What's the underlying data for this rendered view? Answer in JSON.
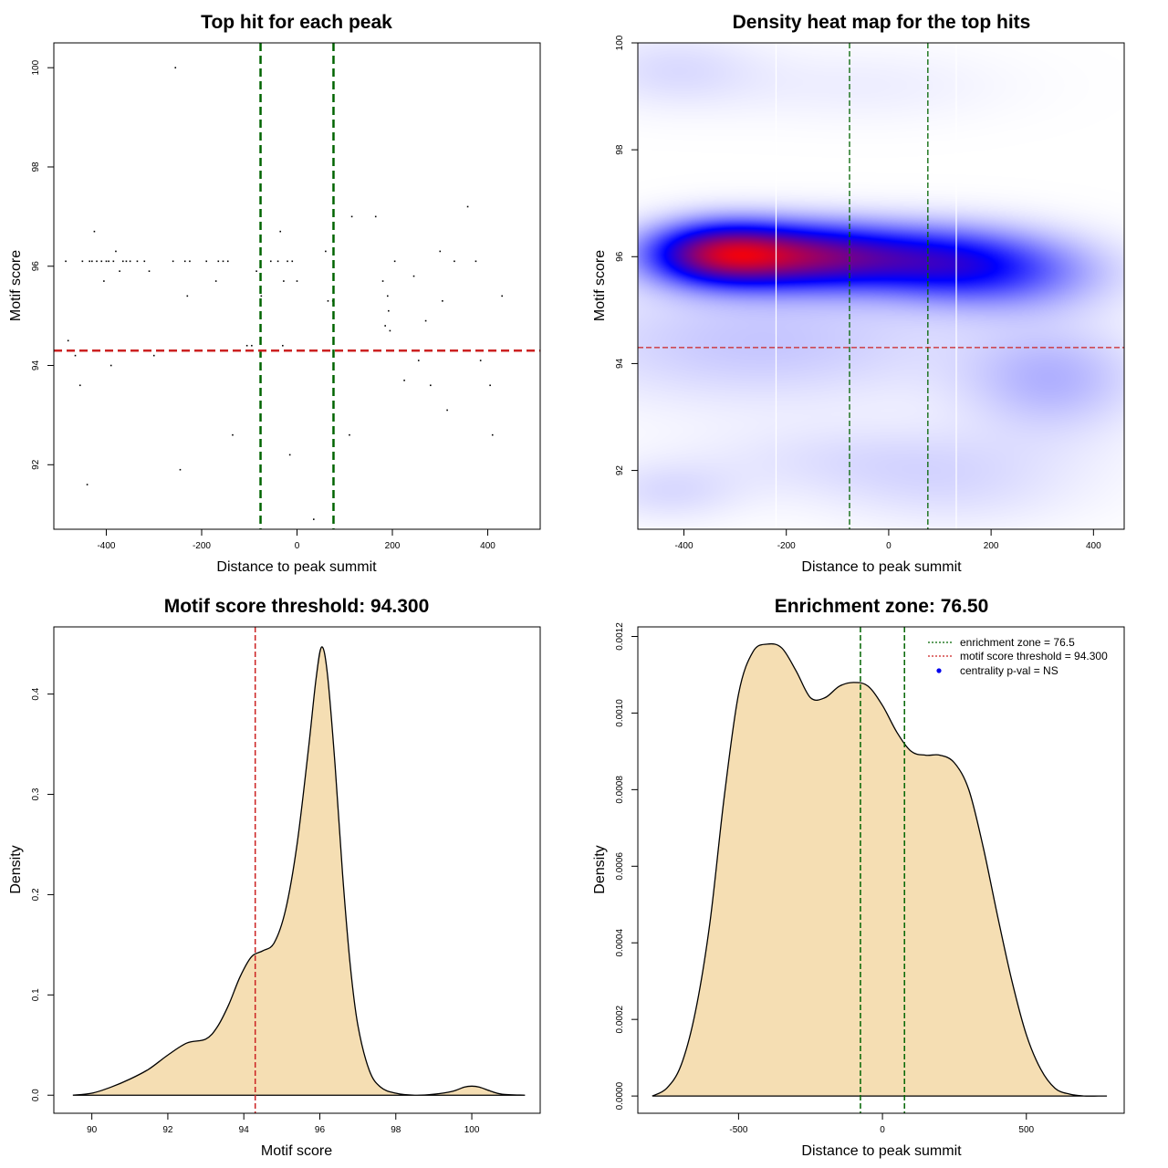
{
  "chart_data": [
    {
      "id": "p1",
      "type": "scatter",
      "title": "Top hit for each peak",
      "xlabel": "Distance to peak summit",
      "ylabel": "Motif score",
      "xlim": [
        -510,
        510
      ],
      "ylim": [
        90.7,
        100.5
      ],
      "xticks": [
        -400,
        -200,
        0,
        200,
        400
      ],
      "yticks": [
        92,
        94,
        96,
        98,
        100
      ],
      "vlines": [
        {
          "x": -76.5,
          "color": "#006400"
        },
        {
          "x": 76.5,
          "color": "#006400"
        }
      ],
      "hlines": [
        {
          "y": 94.3,
          "color": "#cc2222"
        }
      ],
      "points": [
        [
          -485,
          96.1
        ],
        [
          -480,
          94.5
        ],
        [
          -465,
          94.2
        ],
        [
          -455,
          93.6
        ],
        [
          -450,
          96.1
        ],
        [
          -440,
          91.6
        ],
        [
          -435,
          96.1
        ],
        [
          -430,
          96.1
        ],
        [
          -425,
          96.7
        ],
        [
          -420,
          96.1
        ],
        [
          -410,
          96.1
        ],
        [
          -405,
          95.7
        ],
        [
          -400,
          96.1
        ],
        [
          -395,
          96.1
        ],
        [
          -390,
          94.0
        ],
        [
          -385,
          96.1
        ],
        [
          -380,
          96.3
        ],
        [
          -372,
          95.9
        ],
        [
          -365,
          96.1
        ],
        [
          -358,
          96.1
        ],
        [
          -350,
          96.1
        ],
        [
          -335,
          96.1
        ],
        [
          -320,
          96.1
        ],
        [
          -310,
          95.9
        ],
        [
          -300,
          94.2
        ],
        [
          -260,
          96.1
        ],
        [
          -255,
          100.0
        ],
        [
          -245,
          91.9
        ],
        [
          -235,
          96.1
        ],
        [
          -230,
          95.4
        ],
        [
          -225,
          96.1
        ],
        [
          -190,
          96.1
        ],
        [
          -170,
          95.7
        ],
        [
          -165,
          96.1
        ],
        [
          -155,
          96.1
        ],
        [
          -145,
          96.1
        ],
        [
          -135,
          92.6
        ],
        [
          -105,
          94.4
        ],
        [
          -95,
          94.4
        ],
        [
          -85,
          95.9
        ],
        [
          -75,
          95.4
        ],
        [
          -55,
          96.1
        ],
        [
          -40,
          96.1
        ],
        [
          -35,
          96.7
        ],
        [
          -30,
          94.4
        ],
        [
          -28,
          95.7
        ],
        [
          -20,
          96.1
        ],
        [
          -15,
          92.2
        ],
        [
          -10,
          96.1
        ],
        [
          0,
          95.7
        ],
        [
          35,
          90.9
        ],
        [
          60,
          96.3
        ],
        [
          65,
          95.3
        ],
        [
          75,
          95.3
        ],
        [
          110,
          92.6
        ],
        [
          115,
          97.0
        ],
        [
          165,
          97.0
        ],
        [
          180,
          95.7
        ],
        [
          185,
          94.8
        ],
        [
          190,
          95.4
        ],
        [
          192,
          95.1
        ],
        [
          195,
          94.7
        ],
        [
          205,
          96.1
        ],
        [
          225,
          93.7
        ],
        [
          245,
          95.8
        ],
        [
          255,
          94.1
        ],
        [
          270,
          94.9
        ],
        [
          280,
          93.6
        ],
        [
          300,
          96.3
        ],
        [
          305,
          95.3
        ],
        [
          315,
          93.1
        ],
        [
          330,
          96.1
        ],
        [
          358,
          97.2
        ],
        [
          375,
          96.1
        ],
        [
          385,
          94.1
        ],
        [
          405,
          93.6
        ],
        [
          410,
          92.6
        ],
        [
          430,
          95.4
        ]
      ]
    },
    {
      "id": "p2",
      "type": "heatmap",
      "title": "Density heat map for the top hits",
      "xlabel": "Distance to peak summit",
      "ylabel": "Motif score",
      "xlim": [
        -490,
        460
      ],
      "ylim": [
        90.9,
        100.0
      ],
      "xticks": [
        -400,
        -200,
        0,
        200,
        400
      ],
      "yticks": [
        92,
        94,
        96,
        98,
        100
      ],
      "vlines": [
        {
          "x": -76.5,
          "color": "#006400"
        },
        {
          "x": 76.5,
          "color": "#006400"
        }
      ],
      "white_vlines": [
        -220,
        132
      ],
      "hlines": [
        {
          "y": 94.3,
          "color": "#cc2222"
        }
      ],
      "blobs": [
        {
          "x": -420,
          "y": 99.5,
          "sx": 120,
          "sy": 0.5,
          "w": 0.06
        },
        {
          "x": -50,
          "y": 99.2,
          "sx": 200,
          "sy": 0.5,
          "w": 0.03
        },
        {
          "x": -330,
          "y": 96.05,
          "sx": 100,
          "sy": 0.4,
          "w": 0.7
        },
        {
          "x": -140,
          "y": 96.0,
          "sx": 130,
          "sy": 0.42,
          "w": 0.6
        },
        {
          "x": 100,
          "y": 95.9,
          "sx": 120,
          "sy": 0.45,
          "w": 0.35
        },
        {
          "x": 250,
          "y": 95.7,
          "sx": 130,
          "sy": 0.5,
          "w": 0.22
        },
        {
          "x": -250,
          "y": 94.4,
          "sx": 280,
          "sy": 0.8,
          "w": 0.1
        },
        {
          "x": 320,
          "y": 93.7,
          "sx": 120,
          "sy": 0.7,
          "w": 0.13
        },
        {
          "x": 0,
          "y": 92.2,
          "sx": 250,
          "sy": 0.5,
          "w": 0.06
        },
        {
          "x": -430,
          "y": 91.6,
          "sx": 100,
          "sy": 0.4,
          "w": 0.06
        },
        {
          "x": 130,
          "y": 91.5,
          "sx": 180,
          "sy": 0.5,
          "w": 0.04
        }
      ]
    },
    {
      "id": "p3",
      "type": "area",
      "title": "Motif score threshold: 94.300",
      "xlabel": "Motif score",
      "ylabel": "Density",
      "xlim": [
        89.0,
        101.8
      ],
      "ylim": [
        -0.018,
        0.467
      ],
      "xticks": [
        90,
        92,
        94,
        96,
        98,
        100
      ],
      "yticks": [
        0.0,
        0.1,
        0.2,
        0.3,
        0.4
      ],
      "ytick_labels": [
        "0.0",
        "0.1",
        "0.2",
        "0.3",
        "0.4"
      ],
      "vlines": [
        {
          "x": 94.3,
          "color": "#cc2222"
        }
      ],
      "fill": "#f5deb3",
      "x": [
        89.5,
        90.0,
        90.5,
        91.0,
        91.5,
        92.0,
        92.5,
        93.0,
        93.3,
        93.6,
        93.9,
        94.2,
        94.5,
        94.8,
        95.1,
        95.4,
        95.7,
        95.9,
        96.05,
        96.2,
        96.4,
        96.6,
        96.8,
        97.0,
        97.3,
        97.6,
        98.0,
        98.5,
        99.0,
        99.5,
        99.8,
        100.0,
        100.2,
        100.5,
        100.8,
        101.4
      ],
      "y": [
        0.0,
        0.002,
        0.008,
        0.016,
        0.026,
        0.04,
        0.052,
        0.056,
        0.068,
        0.09,
        0.118,
        0.138,
        0.144,
        0.152,
        0.185,
        0.25,
        0.345,
        0.415,
        0.447,
        0.42,
        0.33,
        0.22,
        0.13,
        0.07,
        0.025,
        0.008,
        0.002,
        0.0,
        0.001,
        0.004,
        0.008,
        0.009,
        0.008,
        0.004,
        0.001,
        0.0
      ]
    },
    {
      "id": "p4",
      "type": "area",
      "title": "Enrichment zone: 76.50",
      "xlabel": "Distance to peak summit",
      "ylabel": "Density",
      "xlim": [
        -850,
        840
      ],
      "ylim": [
        -4.5e-05,
        0.001225
      ],
      "xticks": [
        -500,
        0,
        500
      ],
      "yticks": [
        0.0,
        0.0002,
        0.0004,
        0.0006,
        0.0008,
        0.001,
        0.0012
      ],
      "ytick_labels": [
        "0.0000",
        "0.0002",
        "0.0004",
        "0.0006",
        "0.0008",
        "0.0010",
        "0.0012"
      ],
      "vlines": [
        {
          "x": -76.5,
          "color": "#006400"
        },
        {
          "x": 76.5,
          "color": "#006400"
        }
      ],
      "fill": "#f5deb3",
      "x": [
        -800,
        -750,
        -700,
        -650,
        -600,
        -550,
        -500,
        -450,
        -400,
        -350,
        -300,
        -250,
        -200,
        -150,
        -100,
        -50,
        0,
        50,
        100,
        150,
        200,
        250,
        300,
        350,
        400,
        450,
        500,
        550,
        600,
        650,
        700,
        750,
        780
      ],
      "y": [
        0.0,
        2e-05,
        8e-05,
        0.00022,
        0.00045,
        0.00078,
        0.00105,
        0.00116,
        0.00118,
        0.00117,
        0.00111,
        0.00104,
        0.00104,
        0.00107,
        0.00108,
        0.00107,
        0.00102,
        0.00095,
        0.0009,
        0.00089,
        0.00089,
        0.00087,
        0.0008,
        0.00065,
        0.00047,
        0.0003,
        0.00016,
        7e-05,
        2e-05,
        5e-06,
        0.0,
        0.0,
        0.0
      ]
    }
  ],
  "legend": {
    "items": [
      {
        "label": "enrichment zone = 76.5",
        "color": "#006400",
        "kind": "line"
      },
      {
        "label": "motif score threshold = 94.300",
        "color": "#cc2222",
        "kind": "line"
      },
      {
        "label": "centrality p-val = NS",
        "color": "#0000ee",
        "kind": "dot"
      }
    ]
  }
}
